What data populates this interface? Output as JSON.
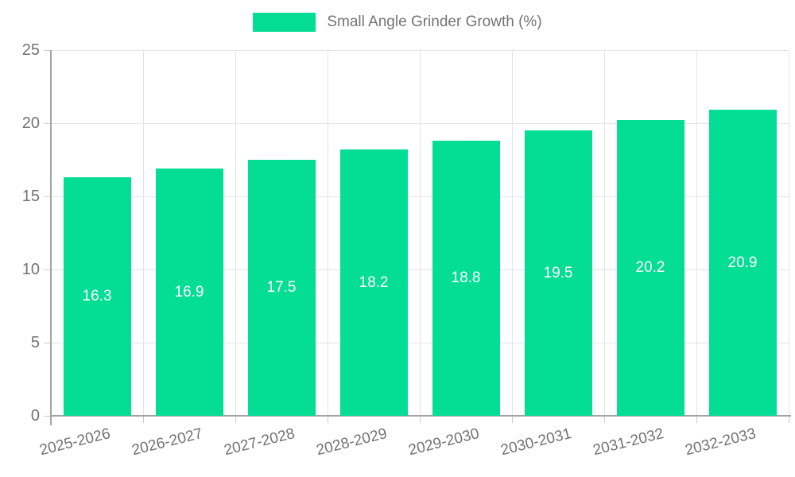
{
  "chart_data": {
    "type": "bar",
    "title": "",
    "series_name": "Small Angle Grinder Growth (%)",
    "categories": [
      "2025-2026",
      "2026-2027",
      "2027-2028",
      "2028-2029",
      "2029-2030",
      "2030-2031",
      "2031-2032",
      "2032-2033"
    ],
    "values": [
      16.3,
      16.9,
      17.5,
      18.2,
      18.8,
      19.5,
      20.2,
      20.9
    ],
    "value_labels": [
      "16.3",
      "16.9",
      "17.5",
      "18.2",
      "18.8",
      "19.5",
      "20.2",
      "20.9"
    ],
    "xlabel": "",
    "ylabel": "",
    "ylim": [
      0,
      25
    ],
    "yticks": [
      0,
      5,
      10,
      15,
      20,
      25
    ],
    "ytick_labels": [
      "0",
      "5",
      "10",
      "15",
      "20",
      "25"
    ],
    "grid": true,
    "legend_position": "top-center",
    "bar_color": "#04dd94",
    "grid_color": "#e4e4e4",
    "axis_color": "#a3a3a3",
    "tick_color": "#cccccc",
    "label_color": "#737373",
    "value_label_color": "#ffffff"
  }
}
